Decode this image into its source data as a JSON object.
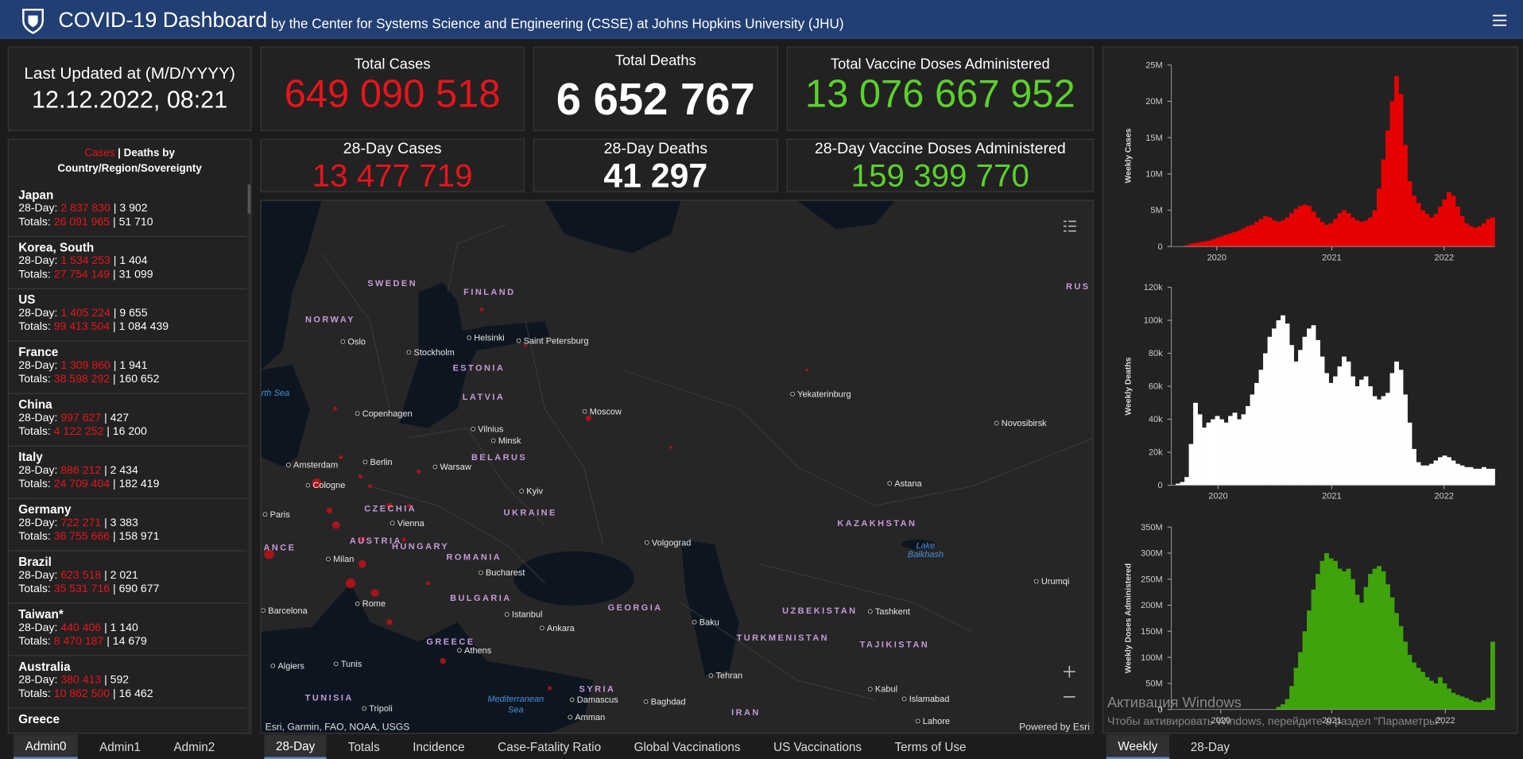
{
  "header": {
    "title": "COVID-19 Dashboard",
    "subtitle": "by the Center for Systems Science and Engineering (CSSE) at Johns Hopkins University (JHU)"
  },
  "last_updated": {
    "label": "Last Updated at (M/D/YYYY)",
    "value": "12.12.2022, 08:21"
  },
  "totals": [
    {
      "label": "Total Cases",
      "value": "649 090 518",
      "color": "#e8141b"
    },
    {
      "label": "Total Deaths",
      "value": "6 652 767",
      "color": "#ffffff"
    },
    {
      "label": "Total Vaccine Doses Administered",
      "value": "13 076 667 952",
      "color": "#5bd12c"
    }
  ],
  "day28": [
    {
      "label": "28-Day Cases",
      "value": "13 477 719",
      "color": "#e8141b"
    },
    {
      "label": "28-Day Deaths",
      "value": "41 297",
      "color": "#ffffff"
    },
    {
      "label": "28-Day Vaccine Doses Administered",
      "value": "159 399 770",
      "color": "#5bd12c"
    }
  ],
  "country_list": {
    "title_cases": "Cases",
    "separator": "|",
    "title_deaths": "Deaths by",
    "title_region": "Country/Region/Sovereignty",
    "day28_label": "28-Day:",
    "totals_label": "Totals:",
    "cases_color": "#e8141b",
    "rows": [
      {
        "name": "Japan",
        "day28_cases": "2 837 830",
        "day28_deaths": "3 902",
        "total_cases": "26 091 965",
        "total_deaths": "51 710"
      },
      {
        "name": "Korea, South",
        "day28_cases": "1 534 253",
        "day28_deaths": "1 404",
        "total_cases": "27 754 149",
        "total_deaths": "31 099"
      },
      {
        "name": "US",
        "day28_cases": "1 405 224",
        "day28_deaths": "9 655",
        "total_cases": "99 413 504",
        "total_deaths": "1 084 439"
      },
      {
        "name": "France",
        "day28_cases": "1 309 860",
        "day28_deaths": "1 941",
        "total_cases": "38 598 292",
        "total_deaths": "160 652"
      },
      {
        "name": "China",
        "day28_cases": "997 627",
        "day28_deaths": "427",
        "total_cases": "4 122 252",
        "total_deaths": "16 200"
      },
      {
        "name": "Italy",
        "day28_cases": "886 212",
        "day28_deaths": "2 434",
        "total_cases": "24 709 404",
        "total_deaths": "182 419"
      },
      {
        "name": "Germany",
        "day28_cases": "722 271",
        "day28_deaths": "3 383",
        "total_cases": "36 755 666",
        "total_deaths": "158 971"
      },
      {
        "name": "Brazil",
        "day28_cases": "623 518",
        "day28_deaths": "2 021",
        "total_cases": "35 531 716",
        "total_deaths": "690 677"
      },
      {
        "name": "Taiwan*",
        "day28_cases": "440 406",
        "day28_deaths": "1 140",
        "total_cases": "8 470 187",
        "total_deaths": "14 679"
      },
      {
        "name": "Australia",
        "day28_cases": "380 413",
        "day28_deaths": "592",
        "total_cases": "10 862 500",
        "total_deaths": "16 462"
      },
      {
        "name": "Greece"
      }
    ]
  },
  "map": {
    "labels": [
      {
        "text": "SWEDEN",
        "kind": "country"
      },
      {
        "text": "FINLAND",
        "kind": "country"
      },
      {
        "text": "NORWAY",
        "kind": "country"
      },
      {
        "text": "ESTONIA",
        "kind": "country"
      },
      {
        "text": "LATVIA",
        "kind": "country"
      },
      {
        "text": "BELARUS",
        "kind": "country"
      },
      {
        "text": "UKRAINE",
        "kind": "country"
      },
      {
        "text": "CZECHIA",
        "kind": "country"
      },
      {
        "text": "AUSTRIA",
        "kind": "country"
      },
      {
        "text": "HUNGARY",
        "kind": "country"
      },
      {
        "text": "ROMANIA",
        "kind": "country"
      },
      {
        "text": "BULGARIA",
        "kind": "country"
      },
      {
        "text": "GREECE",
        "kind": "country"
      },
      {
        "text": "GEORGIA",
        "kind": "country"
      },
      {
        "text": "KAZAKHSTAN",
        "kind": "country"
      },
      {
        "text": "UZBEKISTAN",
        "kind": "country"
      },
      {
        "text": "TURKMENISTAN",
        "kind": "country"
      },
      {
        "text": "TAJIKISTAN",
        "kind": "country"
      },
      {
        "text": "IRAN",
        "kind": "country"
      },
      {
        "text": "SYRIA",
        "kind": "country"
      },
      {
        "text": "TUNISIA",
        "kind": "country"
      },
      {
        "text": "RUS",
        "kind": "country"
      },
      {
        "text": "ANCE",
        "kind": "country"
      },
      {
        "text": "Oslo",
        "kind": "city"
      },
      {
        "text": "Stockholm",
        "kind": "city"
      },
      {
        "text": "Helsinki",
        "kind": "city"
      },
      {
        "text": "Saint Petersburg",
        "kind": "city"
      },
      {
        "text": "Copenhagen",
        "kind": "city"
      },
      {
        "text": "Moscow",
        "kind": "city"
      },
      {
        "text": "Yekaterinburg",
        "kind": "city"
      },
      {
        "text": "Novosibirsk",
        "kind": "city"
      },
      {
        "text": "Vilnius",
        "kind": "city"
      },
      {
        "text": "Minsk",
        "kind": "city"
      },
      {
        "text": "Amsterdam",
        "kind": "city"
      },
      {
        "text": "Berlin",
        "kind": "city"
      },
      {
        "text": "Warsaw",
        "kind": "city"
      },
      {
        "text": "Cologne",
        "kind": "city"
      },
      {
        "text": "Kyiv",
        "kind": "city"
      },
      {
        "text": "Paris",
        "kind": "city"
      },
      {
        "text": "Vienna",
        "kind": "city"
      },
      {
        "text": "Volgograd",
        "kind": "city"
      },
      {
        "text": "Astana",
        "kind": "city"
      },
      {
        "text": "Milan",
        "kind": "city"
      },
      {
        "text": "Bucharest",
        "kind": "city"
      },
      {
        "text": "Barcelona",
        "kind": "city"
      },
      {
        "text": "Rome",
        "kind": "city"
      },
      {
        "text": "Istanbul",
        "kind": "city"
      },
      {
        "text": "Ankara",
        "kind": "city"
      },
      {
        "text": "Baku",
        "kind": "city"
      },
      {
        "text": "Tashkent",
        "kind": "city"
      },
      {
        "text": "Urumqi",
        "kind": "city"
      },
      {
        "text": "Algiers",
        "kind": "city"
      },
      {
        "text": "Tunis",
        "kind": "city"
      },
      {
        "text": "Athens",
        "kind": "city"
      },
      {
        "text": "Tehran",
        "kind": "city"
      },
      {
        "text": "Kabul",
        "kind": "city"
      },
      {
        "text": "Islamabad",
        "kind": "city"
      },
      {
        "text": "Tripoli",
        "kind": "city"
      },
      {
        "text": "Damascus",
        "kind": "city"
      },
      {
        "text": "Baghdad",
        "kind": "city"
      },
      {
        "text": "Amman",
        "kind": "city"
      },
      {
        "text": "Lahore",
        "kind": "city"
      },
      {
        "text": "rth Sea",
        "kind": "water"
      },
      {
        "text": "Lake",
        "kind": "water"
      },
      {
        "text": "Balkhash",
        "kind": "water"
      },
      {
        "text": "Mediterranean",
        "kind": "water"
      },
      {
        "text": "Sea",
        "kind": "water"
      }
    ],
    "attribution": "Esri, Garmin, FAO, NOAA, USGS",
    "powered_by": "Powered by Esri"
  },
  "tabs": {
    "left": [
      "Admin0",
      "Admin1",
      "Admin2"
    ],
    "middle": [
      "28-Day",
      "Totals",
      "Incidence",
      "Case-Fatality Ratio",
      "Global Vaccinations",
      "US Vaccinations",
      "Terms of Use"
    ],
    "right": [
      "Weekly",
      "28-Day"
    ]
  },
  "charts": [
    {
      "type": "bar",
      "ylabel": "Weekly Cases",
      "color": "#e60000",
      "ylim": [
        0,
        25000000.0
      ],
      "yticks": [
        0,
        {
          "value": 5000000.0,
          "label": "5M"
        },
        {
          "value": 10000000.0,
          "label": "10M"
        },
        {
          "value": 15000000.0,
          "label": "15M"
        },
        {
          "value": 20000000.0,
          "label": "20M"
        },
        {
          "value": 25000000.0,
          "label": "25M"
        }
      ],
      "xlim": [
        0,
        74
      ],
      "xticks": [
        {
          "value": 10.4,
          "label": "2020"
        },
        {
          "value": 36.7,
          "label": "2021"
        },
        {
          "value": 62.4,
          "label": "2022"
        }
      ],
      "values": [
        0,
        0,
        50000.0,
        200000.0,
        400000.0,
        500000.0,
        600000.0,
        700000.0,
        800000.0,
        1000000.0,
        1200000.0,
        1400000.0,
        1600000.0,
        1800000.0,
        2000000.0,
        2200000.0,
        2500000.0,
        2800000.0,
        3000000.0,
        3400000.0,
        3800000.0,
        4200000.0,
        4000000.0,
        3600000.0,
        3400000.0,
        3600000.0,
        4000000.0,
        4600000.0,
        5200000.0,
        5600000.0,
        5800000.0,
        5600000.0,
        4800000.0,
        4000000.0,
        3400000.0,
        3000000.0,
        3200000.0,
        3800000.0,
        4600000.0,
        5000000.0,
        4600000.0,
        4000000.0,
        3600000.0,
        3400000.0,
        3600000.0,
        4000000.0,
        5000000.0,
        8000000.0,
        12000000.0,
        16000000.0,
        20000000.0,
        23500000.0,
        21000000.0,
        14000000.0,
        9000000.0,
        7000000.0,
        6000000.0,
        5000000.0,
        4500000.0,
        4000000.0,
        4500000.0,
        5500000.0,
        6500000.0,
        7500000.0,
        7000000.0,
        5500000.0,
        4200000.0,
        3200000.0,
        2800000.0,
        2600000.0,
        2800000.0,
        3200000.0,
        3800000.0,
        4000000.0
      ]
    },
    {
      "type": "bar",
      "ylabel": "Weekly Deaths",
      "color": "#ffffff",
      "ylim": [
        0,
        120000.0
      ],
      "yticks": [
        0,
        {
          "value": 20000.0,
          "label": "20k"
        },
        {
          "value": 40000.0,
          "label": "40k"
        },
        {
          "value": 60000.0,
          "label": "60k"
        },
        {
          "value": 80000.0,
          "label": "80k"
        },
        {
          "value": 100000.0,
          "label": "100k"
        },
        {
          "value": 120000.0,
          "label": "120k"
        }
      ],
      "xlim": [
        0,
        74
      ],
      "xticks": [
        {
          "value": 10.7,
          "label": "2020"
        },
        {
          "value": 36.7,
          "label": "2021"
        },
        {
          "value": 62.4,
          "label": "2022"
        }
      ],
      "values": [
        0,
        1000.0,
        2000.0,
        5000.0,
        25000.0,
        50000.0,
        43000.0,
        35000.0,
        38000.0,
        40000.0,
        42000.0,
        40000.0,
        38000.0,
        42000.0,
        44000.0,
        40000.0,
        43000.0,
        48000.0,
        55000.0,
        62000.0,
        70000.0,
        80000.0,
        90000.0,
        95000.0,
        100000.0,
        103000.0,
        98000.0,
        85000.0,
        75000.0,
        82000.0,
        90000.0,
        95000.0,
        97000.0,
        88000.0,
        78000.0,
        68000.0,
        62000.0,
        66000.0,
        72000.0,
        78000.0,
        75000.0,
        66000.0,
        60000.0,
        64000.0,
        66000.0,
        60000.0,
        54000.0,
        52000.0,
        54000.0,
        56000.0,
        68000.0,
        75000.0,
        70000.0,
        55000.0,
        38000.0,
        22000.0,
        14000.0,
        12000.0,
        12000.0,
        13000.0,
        15000.0,
        17000.0,
        18000.0,
        17000.0,
        15000.0,
        13000.0,
        12000.0,
        11000.0,
        11000.0,
        10000.0,
        10000.0,
        11000.0,
        10000.0,
        10000.0
      ]
    },
    {
      "type": "bar",
      "ylabel": "Weekly Doses Administered",
      "color": "#3fa30c",
      "ylim": [
        0,
        350000000.0
      ],
      "yticks": [
        0,
        {
          "value": 50000000.0,
          "label": "50M"
        },
        {
          "value": 100000000.0,
          "label": "100M"
        },
        {
          "value": 150000000.0,
          "label": "150M"
        },
        {
          "value": 200000000.0,
          "label": "200M"
        },
        {
          "value": 250000000.0,
          "label": "250M"
        },
        {
          "value": 300000000.0,
          "label": "300M"
        },
        {
          "value": 350000000.0,
          "label": "350M"
        }
      ],
      "xlim": [
        0,
        74
      ],
      "xticks": [
        {
          "value": 11.3,
          "label": "2020"
        },
        {
          "value": 36.7,
          "label": "2021"
        },
        {
          "value": 62.7,
          "label": "2022"
        }
      ],
      "values": [
        0,
        0,
        0,
        0,
        0,
        0,
        0,
        0,
        0,
        0,
        0,
        0,
        0,
        0,
        0,
        0,
        0,
        0,
        0,
        0,
        0,
        0,
        0,
        0,
        5000000.0,
        10000000.0,
        20000000.0,
        45000000.0,
        80000000.0,
        110000000.0,
        150000000.0,
        190000000.0,
        230000000.0,
        260000000.0,
        285000000.0,
        300000000.0,
        290000000.0,
        285000000.0,
        270000000.0,
        265000000.0,
        270000000.0,
        250000000.0,
        220000000.0,
        205000000.0,
        235000000.0,
        260000000.0,
        270000000.0,
        275000000.0,
        265000000.0,
        240000000.0,
        215000000.0,
        185000000.0,
        160000000.0,
        130000000.0,
        105000000.0,
        90000000.0,
        80000000.0,
        72000000.0,
        62000000.0,
        55000000.0,
        50000000.0,
        62000000.0,
        50000000.0,
        40000000.0,
        32000000.0,
        28000000.0,
        25000000.0,
        22000000.0,
        18000000.0,
        15000000.0,
        14000000.0,
        18000000.0,
        22000000.0,
        130000000.0
      ]
    }
  ],
  "watermark": {
    "title": "Активация Windows",
    "text": "Чтобы активировать Windows, перейдите в раздел \"Параметры\"."
  }
}
